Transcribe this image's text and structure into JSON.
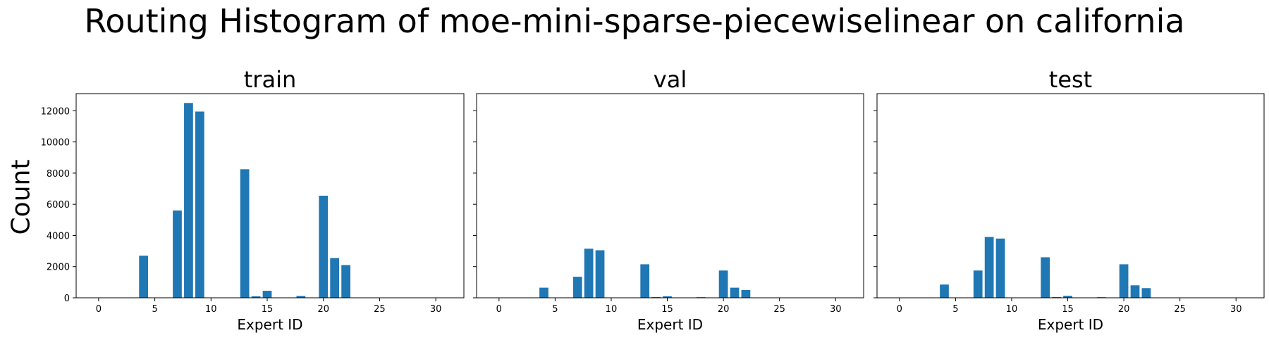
{
  "suptitle": "Routing Histogram of moe-mini-sparse-piecewiselinear on california",
  "ylabel": "Count",
  "bar_color": "#1f77b4",
  "chart_data": [
    {
      "type": "bar",
      "title": "train",
      "xlabel": "Expert ID",
      "ylabel": "Count",
      "xlim": [
        -2,
        32.5
      ],
      "ylim": [
        0,
        13100
      ],
      "xticks": [
        0,
        5,
        10,
        15,
        20,
        25,
        30
      ],
      "yticks": [
        0,
        2000,
        4000,
        6000,
        8000,
        10000,
        12000
      ],
      "x": [
        4,
        7,
        8,
        9,
        13,
        14,
        15,
        18,
        20,
        21,
        22
      ],
      "values": [
        2700,
        5600,
        12500,
        11950,
        8250,
        100,
        450,
        120,
        6550,
        2550,
        2100
      ]
    },
    {
      "type": "bar",
      "title": "val",
      "xlabel": "Expert ID",
      "xlim": [
        -2,
        32.5
      ],
      "ylim": [
        0,
        13100
      ],
      "xticks": [
        0,
        5,
        10,
        15,
        20,
        25,
        30
      ],
      "yticks": [
        0,
        2000,
        4000,
        6000,
        8000,
        10000,
        12000
      ],
      "x": [
        4,
        7,
        8,
        9,
        13,
        14,
        15,
        18,
        20,
        21,
        22
      ],
      "values": [
        650,
        1350,
        3150,
        3050,
        2150,
        50,
        100,
        40,
        1750,
        650,
        500
      ]
    },
    {
      "type": "bar",
      "title": "test",
      "xlabel": "Expert ID",
      "xlim": [
        -2,
        32.5
      ],
      "ylim": [
        0,
        13100
      ],
      "xticks": [
        0,
        5,
        10,
        15,
        20,
        25,
        30
      ],
      "yticks": [
        0,
        2000,
        4000,
        6000,
        8000,
        10000,
        12000
      ],
      "x": [
        4,
        7,
        8,
        9,
        13,
        14,
        15,
        18,
        20,
        21,
        22
      ],
      "values": [
        850,
        1750,
        3900,
        3800,
        2600,
        50,
        130,
        40,
        2150,
        800,
        620
      ]
    }
  ]
}
